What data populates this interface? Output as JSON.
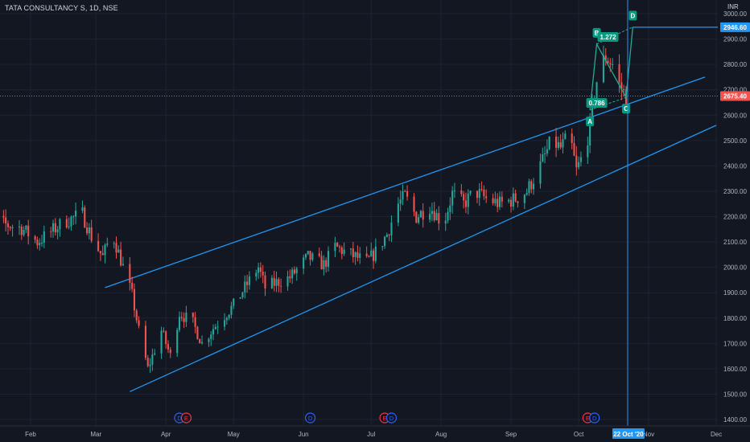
{
  "chart_data": {
    "type": "candlestick",
    "title": "TATA CONSULTANCY S, 1D, NSE",
    "currency": "INR",
    "y_ticks": [
      1400,
      1500,
      1600,
      1700,
      1800,
      1900,
      2000,
      2100,
      2200,
      2300,
      2400,
      2500,
      2600,
      2700,
      2800,
      2900,
      3000
    ],
    "y_tick_labels": [
      "1400.00",
      "1500.00",
      "1600.00",
      "1700.00",
      "1800.00",
      "1900.00",
      "2000.00",
      "2100.00",
      "2200.00",
      "2300.00",
      "2400.00",
      "2500.00",
      "2600.00",
      "2700.00",
      "2800.00",
      "2900.00",
      "3000.00"
    ],
    "ylim": [
      1375,
      3050
    ],
    "x_months": [
      {
        "label": "Feb",
        "date": "2020-02-01"
      },
      {
        "label": "Mar",
        "date": "2020-03-01"
      },
      {
        "label": "Apr",
        "date": "2020-04-01"
      },
      {
        "label": "May",
        "date": "2020-05-01"
      },
      {
        "label": "Jun",
        "date": "2020-06-01"
      },
      {
        "label": "Jul",
        "date": "2020-07-01"
      },
      {
        "label": "Aug",
        "date": "2020-08-01"
      },
      {
        "label": "Sep",
        "date": "2020-09-01"
      },
      {
        "label": "Oct",
        "date": "2020-10-01"
      },
      {
        "label": "Nov",
        "date": "2020-11-01"
      },
      {
        "label": "Dec",
        "date": "2020-12-01"
      }
    ],
    "price_path": [
      [
        "2020-01-08",
        2170
      ],
      [
        "2020-01-12",
        2205
      ],
      [
        "2020-01-20",
        2170
      ],
      [
        "2020-01-28",
        2155
      ],
      [
        "2020-02-04",
        2100
      ],
      [
        "2020-02-10",
        2140
      ],
      [
        "2020-02-16",
        2180
      ],
      [
        "2020-02-24",
        2210
      ],
      [
        "2020-02-28",
        2120
      ],
      [
        "2020-03-04",
        2040
      ],
      [
        "2020-03-08",
        2140
      ],
      [
        "2020-03-12",
        2030
      ],
      [
        "2020-03-17",
        1890
      ],
      [
        "2020-03-20",
        1750
      ],
      [
        "2020-03-24",
        1600
      ],
      [
        "2020-03-30",
        1750
      ],
      [
        "2020-04-03",
        1650
      ],
      [
        "2020-04-07",
        1820
      ],
      [
        "2020-04-13",
        1780
      ],
      [
        "2020-04-17",
        1700
      ],
      [
        "2020-04-22",
        1760
      ],
      [
        "2020-04-28",
        1820
      ],
      [
        "2020-05-01",
        1850
      ],
      [
        "2020-05-06",
        1920
      ],
      [
        "2020-05-12",
        2000
      ],
      [
        "2020-05-15",
        1920
      ],
      [
        "2020-05-20",
        1940
      ],
      [
        "2020-05-26",
        1960
      ],
      [
        "2020-06-03",
        2040
      ],
      [
        "2020-06-10",
        2010
      ],
      [
        "2020-06-15",
        2080
      ],
      [
        "2020-06-22",
        2050
      ],
      [
        "2020-06-29",
        2020
      ],
      [
        "2020-07-03",
        2060
      ],
      [
        "2020-07-08",
        2130
      ],
      [
        "2020-07-13",
        2250
      ],
      [
        "2020-07-16",
        2280
      ],
      [
        "2020-07-21",
        2200
      ],
      [
        "2020-07-27",
        2240
      ],
      [
        "2020-08-02",
        2170
      ],
      [
        "2020-08-06",
        2290
      ],
      [
        "2020-08-11",
        2250
      ],
      [
        "2020-08-16",
        2300
      ],
      [
        "2020-08-21",
        2270
      ],
      [
        "2020-08-27",
        2250
      ],
      [
        "2020-09-03",
        2270
      ],
      [
        "2020-09-08",
        2300
      ],
      [
        "2020-09-14",
        2400
      ],
      [
        "2020-09-19",
        2500
      ],
      [
        "2020-09-23",
        2470
      ],
      [
        "2020-09-27",
        2520
      ],
      [
        "2020-09-30",
        2380
      ],
      [
        "2020-10-04",
        2470
      ],
      [
        "2020-10-06",
        2560
      ],
      [
        "2020-10-08",
        2690
      ],
      [
        "2020-10-10",
        2780
      ],
      [
        "2020-10-13",
        2830
      ],
      [
        "2020-10-16",
        2800
      ],
      [
        "2020-10-19",
        2720
      ],
      [
        "2020-10-22",
        2675
      ]
    ],
    "last_price": "2675.40",
    "target_price": "2946.60",
    "cursor_date": "22 Oct '20",
    "channel_upper": [
      [
        "2020-03-05",
        1920
      ],
      [
        "2020-11-26",
        2750
      ]
    ],
    "channel_lower": [
      [
        "2020-03-16",
        1510
      ],
      [
        "2020-12-01",
        2560
      ]
    ],
    "pattern": {
      "points": [
        {
          "label": "A",
          "date": "2020-10-06",
          "price": 2620
        },
        {
          "label": "B",
          "date": "2020-10-09",
          "price": 2880
        },
        {
          "label": "C",
          "date": "2020-10-22",
          "price": 2670
        },
        {
          "label": "D",
          "date": "2020-10-25",
          "price": 2948
        }
      ],
      "ratios": [
        {
          "label": "0.786",
          "date": "2020-10-09",
          "price": 2648
        },
        {
          "label": "1.272",
          "date": "2020-10-14",
          "price": 2908
        }
      ]
    },
    "events": [
      {
        "label": "D",
        "date": "2020-01-08"
      },
      {
        "label": "D",
        "date": "2020-04-07"
      },
      {
        "label": "E",
        "date": "2020-04-10"
      },
      {
        "label": "D",
        "date": "2020-06-04"
      },
      {
        "label": "E",
        "date": "2020-07-07"
      },
      {
        "label": "D",
        "date": "2020-07-10"
      },
      {
        "label": "E",
        "date": "2020-10-05"
      },
      {
        "label": "D",
        "date": "2020-10-08"
      }
    ],
    "colors": {
      "background": "#131722",
      "grid": "#1f2331",
      "up": "#26a69a",
      "down": "#ef5350",
      "channel": "#2196f3",
      "pattern": "#089981",
      "pattern_line": "#22ab94",
      "axis_text": "#b2b5be",
      "event_blue": "#2962ff",
      "event_red": "#f23645"
    }
  }
}
